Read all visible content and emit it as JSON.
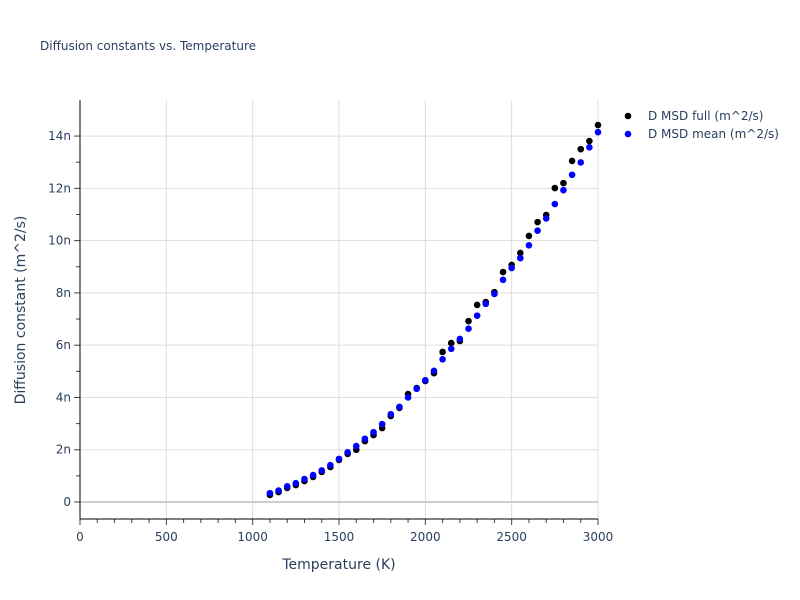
{
  "chart_data": {
    "type": "scatter",
    "title": "Diffusion constants vs. Temperature",
    "xlabel": "Temperature (K)",
    "ylabel": "Diffusion constant (m^2/s)",
    "xlim": [
      0,
      3000
    ],
    "ylim": [
      -6.5e-10,
      1.538e-08
    ],
    "x_ticks": [
      0,
      500,
      1000,
      1500,
      2000,
      2500,
      3000
    ],
    "x_tick_labels": [
      "0",
      "500",
      "1000",
      "1500",
      "2000",
      "2500",
      "3000"
    ],
    "y_ticks": [
      0,
      2e-09,
      4e-09,
      6e-09,
      8e-09,
      1e-08,
      1.2e-08,
      1.4e-08
    ],
    "y_tick_labels": [
      "0",
      "2n",
      "4n",
      "6n",
      "8n",
      "10n",
      "12n",
      "14n"
    ],
    "grid": true,
    "legend_position": "top-right outside",
    "x": [
      1100,
      1150,
      1200,
      1250,
      1300,
      1350,
      1400,
      1450,
      1500,
      1550,
      1600,
      1650,
      1700,
      1750,
      1800,
      1850,
      1900,
      1950,
      2000,
      2050,
      2100,
      2150,
      2200,
      2250,
      2300,
      2350,
      2400,
      2450,
      2500,
      2550,
      2600,
      2650,
      2700,
      2750,
      2800,
      2850,
      2900,
      2950,
      3000
    ],
    "series": [
      {
        "name": "D MSD full (m^2/s)",
        "color": "#000000",
        "values": [
          2.7e-10,
          3.8e-10,
          5.4e-10,
          6.5e-10,
          8e-10,
          9.6e-10,
          1.15e-09,
          1.34e-09,
          1.61e-09,
          1.84e-09,
          2e-09,
          2.33e-09,
          2.56e-09,
          2.83e-09,
          3.29e-09,
          3.6e-09,
          4.13e-09,
          4.36e-09,
          4.63e-09,
          4.93e-09,
          5.74e-09,
          6.08e-09,
          6.16e-09,
          6.92e-09,
          7.54e-09,
          7.65e-09,
          8.03e-09,
          8.8e-09,
          9.07e-09,
          9.53e-09,
          1.018e-08,
          1.071e-08,
          1.098e-08,
          1.201e-08,
          1.22e-08,
          1.305e-08,
          1.35e-08,
          1.381e-08,
          1.442e-08
        ]
      },
      {
        "name": "D MSD mean (m^2/s)",
        "color": "#0000ff",
        "values": [
          3.4e-10,
          4.4e-10,
          6e-10,
          7.2e-10,
          8.8e-10,
          1.03e-09,
          1.21e-09,
          1.41e-09,
          1.65e-09,
          1.9e-09,
          2.14e-09,
          2.42e-09,
          2.67e-09,
          2.98e-09,
          3.36e-09,
          3.64e-09,
          4e-09,
          4.33e-09,
          4.66e-09,
          5.02e-09,
          5.46e-09,
          5.86e-09,
          6.24e-09,
          6.63e-09,
          7.13e-09,
          7.58e-09,
          7.96e-09,
          8.5e-09,
          8.95e-09,
          9.33e-09,
          9.82e-09,
          1.038e-08,
          1.085e-08,
          1.14e-08,
          1.193e-08,
          1.252e-08,
          1.299e-08,
          1.357e-08,
          1.415e-08
        ]
      }
    ]
  }
}
